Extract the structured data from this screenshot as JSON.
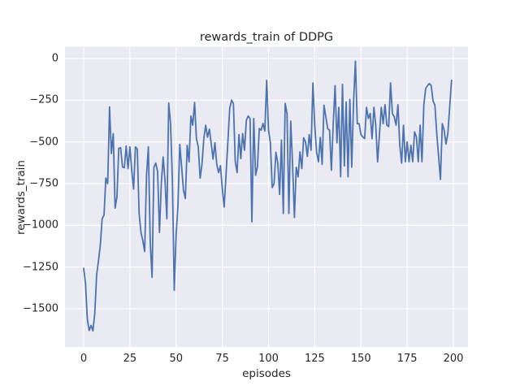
{
  "chart_data": {
    "type": "line",
    "title": "rewards_train of DDPG",
    "xlabel": "episodes",
    "ylabel": "rewards_train",
    "legend": null,
    "grid": true,
    "x_ticks": [
      0,
      25,
      50,
      75,
      100,
      125,
      150,
      175,
      200
    ],
    "x_tick_labels": [
      "0",
      "25",
      "50",
      "75",
      "100",
      "125",
      "150",
      "175",
      "200"
    ],
    "y_ticks": [
      0,
      -250,
      -500,
      -750,
      -1000,
      -1250,
      -1500
    ],
    "y_tick_labels": [
      "0",
      "−250",
      "−500",
      "−750",
      "−1000",
      "−1250",
      "−1500"
    ],
    "xlim": [
      -10.1,
      207.9
    ],
    "ylim": [
      -1730,
      70
    ],
    "colors": {
      "line": "#4c72b0",
      "axes_background": "#eaeaf2",
      "grid": "#ffffff",
      "text": "#262626",
      "figure_background": "#ffffff"
    },
    "series": [
      {
        "name": "rewards_train",
        "x0": 0,
        "dx": 1,
        "values": [
          -1258,
          -1350,
          -1565,
          -1630,
          -1600,
          -1633,
          -1530,
          -1300,
          -1214,
          -1120,
          -960,
          -940,
          -717,
          -750,
          -290,
          -570,
          -450,
          -897,
          -831,
          -538,
          -535,
          -650,
          -655,
          -525,
          -660,
          -530,
          -671,
          -783,
          -530,
          -543,
          -929,
          -1043,
          -1092,
          -1157,
          -700,
          -530,
          -1100,
          -1312,
          -652,
          -627,
          -680,
          -1043,
          -750,
          -590,
          -733,
          -961,
          -267,
          -390,
          -733,
          -1390,
          -1059,
          -880,
          -515,
          -652,
          -790,
          -840,
          -521,
          -620,
          -345,
          -400,
          -264,
          -480,
          -530,
          -717,
          -635,
          -480,
          -400,
          -472,
          -424,
          -510,
          -603,
          -505,
          -635,
          -684,
          -643,
          -782,
          -890,
          -700,
          -500,
          -300,
          -250,
          -270,
          -619,
          -684,
          -456,
          -600,
          -450,
          -550,
          -370,
          -345,
          -360,
          -979,
          -360,
          -700,
          -650,
          -420,
          -430,
          -390,
          -435,
          -131,
          -430,
          -505,
          -774,
          -750,
          -562,
          -627,
          -815,
          -489,
          -929,
          -269,
          -330,
          -929,
          -375,
          -635,
          -953,
          -652,
          -710,
          -560,
          -660,
          -475,
          -500,
          -587,
          -456,
          -550,
          -147,
          -400,
          -562,
          -619,
          -473,
          -635,
          -280,
          -350,
          -420,
          -430,
          -670,
          -391,
          -163,
          -505,
          -293,
          -709,
          -155,
          -644,
          -261,
          -709,
          -245,
          -652,
          -261,
          -16,
          -391,
          -391,
          -456,
          -470,
          -480,
          -293,
          -360,
          -330,
          -481,
          -293,
          -400,
          -620,
          -456,
          -293,
          -390,
          -277,
          -399,
          -408,
          -147,
          -330,
          -350,
          -400,
          -277,
          -521,
          -627,
          -400,
          -619,
          -500,
          -619,
          -520,
          -619,
          -440,
          -470,
          -619,
          -400,
          -619,
          -280,
          -180,
          -163,
          -150,
          -163,
          -255,
          -280,
          -450,
          -587,
          -725,
          -391,
          -430,
          -513,
          -450,
          -290,
          -131
        ]
      }
    ]
  }
}
